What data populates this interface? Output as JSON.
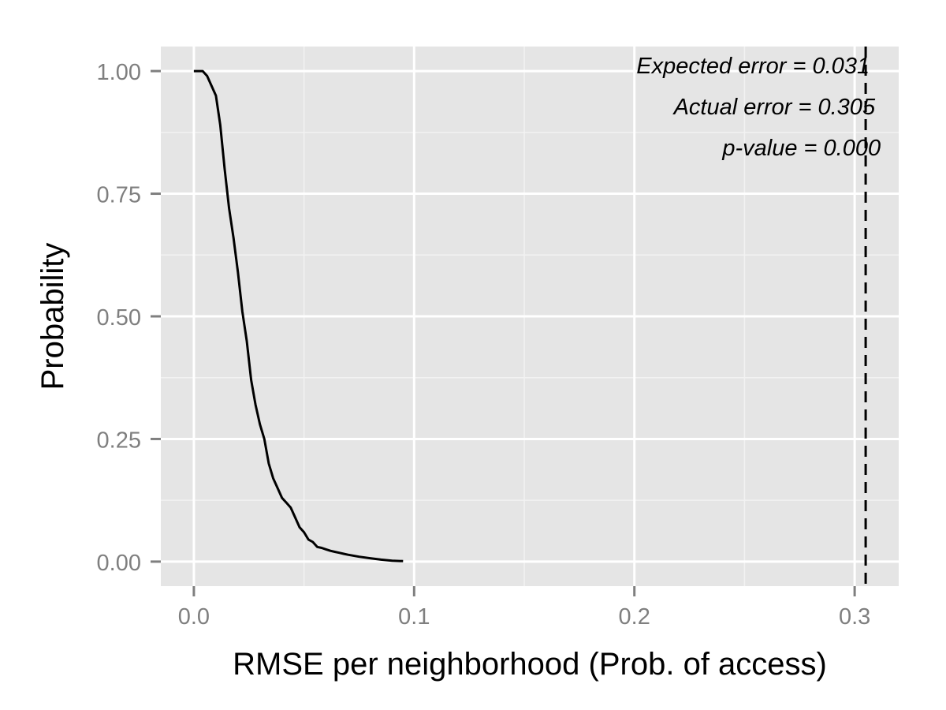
{
  "chart_data": {
    "type": "line",
    "xlabel": "RMSE per neighborhood (Prob. of access)",
    "ylabel": "Probability",
    "xlim": [
      -0.015,
      0.32
    ],
    "ylim": [
      -0.05,
      1.05
    ],
    "x_ticks": [
      "0.0",
      "0.1",
      "0.2",
      "0.3"
    ],
    "y_ticks": [
      "0.00",
      "0.25",
      "0.50",
      "0.75",
      "1.00"
    ],
    "grid": true,
    "background": "#e5e5e5",
    "grid_color": "#ffffff",
    "line_color": "#000000",
    "series": [
      {
        "x": [
          0.0,
          0.004,
          0.006,
          0.008,
          0.01,
          0.012,
          0.014,
          0.016,
          0.018,
          0.02,
          0.022,
          0.024,
          0.026,
          0.028,
          0.03,
          0.032,
          0.034,
          0.036,
          0.038,
          0.04,
          0.042,
          0.044,
          0.046,
          0.048,
          0.05,
          0.052,
          0.054,
          0.056,
          0.058,
          0.06,
          0.062,
          0.064,
          0.066,
          0.068,
          0.07,
          0.075,
          0.08,
          0.085,
          0.09,
          0.095
        ],
        "y": [
          1.0,
          1.0,
          0.99,
          0.97,
          0.95,
          0.89,
          0.8,
          0.72,
          0.66,
          0.59,
          0.51,
          0.45,
          0.37,
          0.32,
          0.28,
          0.25,
          0.2,
          0.17,
          0.15,
          0.13,
          0.12,
          0.11,
          0.09,
          0.07,
          0.06,
          0.045,
          0.04,
          0.03,
          0.028,
          0.025,
          0.022,
          0.02,
          0.018,
          0.016,
          0.014,
          0.01,
          0.007,
          0.004,
          0.002,
          0.001
        ]
      }
    ],
    "reference_line": {
      "x": 0.305,
      "style": "dashed"
    },
    "annotations": [
      "Expected error = 0.031",
      "Actual error = 0.305",
      "p-value = 0.000"
    ]
  }
}
